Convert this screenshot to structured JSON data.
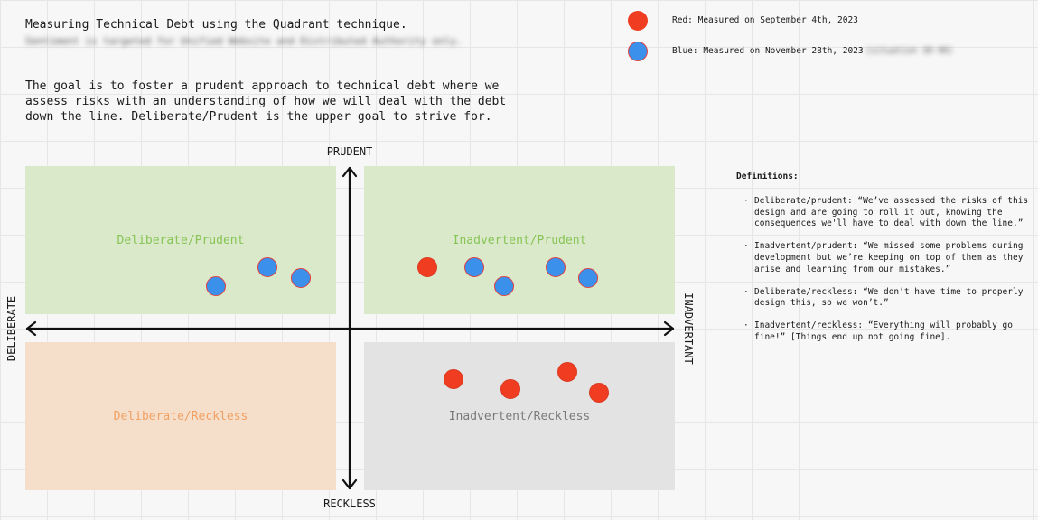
{
  "intro": {
    "title": "Measuring Technical Debt using the Quadrant technique.",
    "blurred": "Sentiment is targeted for Unified Website and Distributed Authority only.",
    "goal": "The goal is to foster a prudent approach to technical debt where we assess risks with an understanding of how we will deal with the debt down the line. Deliberate/Prudent is the upper goal to strive for."
  },
  "legend": [
    {
      "color": "#f03d22",
      "label": "Red: Measured on September 4th, 2023",
      "blurred": ""
    },
    {
      "color": "#3b90eb",
      "label": "Blue: Measured on November 28th, 2023",
      "blurred": "(situation 30-90)"
    }
  ],
  "axes": {
    "top": "PRUDENT",
    "bottom": "RECKLESS",
    "left": "DELIBERATE",
    "right": "INADVERTANT"
  },
  "quadrants": {
    "deliberate_prudent": "Deliberate/Prudent",
    "inadvertent_prudent": "Inadvertent/Prudent",
    "deliberate_reckless": "Deliberate/Reckless",
    "inadvertent_reckless": "Inadvertent/Reckless"
  },
  "definitions": {
    "title": "Definitions:",
    "items": [
      "Deliberate/prudent: “We’ve assessed the risks of this design and are going to roll it out, knowing the consequences we'll have to deal with down the line.”",
      "Inadvertent/prudent: “We missed some problems during development but we’re keeping on top of them as they arise and learning from our mistakes.”",
      "Deliberate/reckless: “We don’t have time to properly design this, so we won’t.”",
      "Inadvertent/reckless: “Everything will probably go fine!” [Things end up not going fine]."
    ]
  },
  "colors": {
    "red": "#f03d22",
    "blue": "#3b90eb",
    "green_area": "#dbe9cb",
    "orange_area": "#f6dfca",
    "gray_area": "#e3e3e3"
  }
}
